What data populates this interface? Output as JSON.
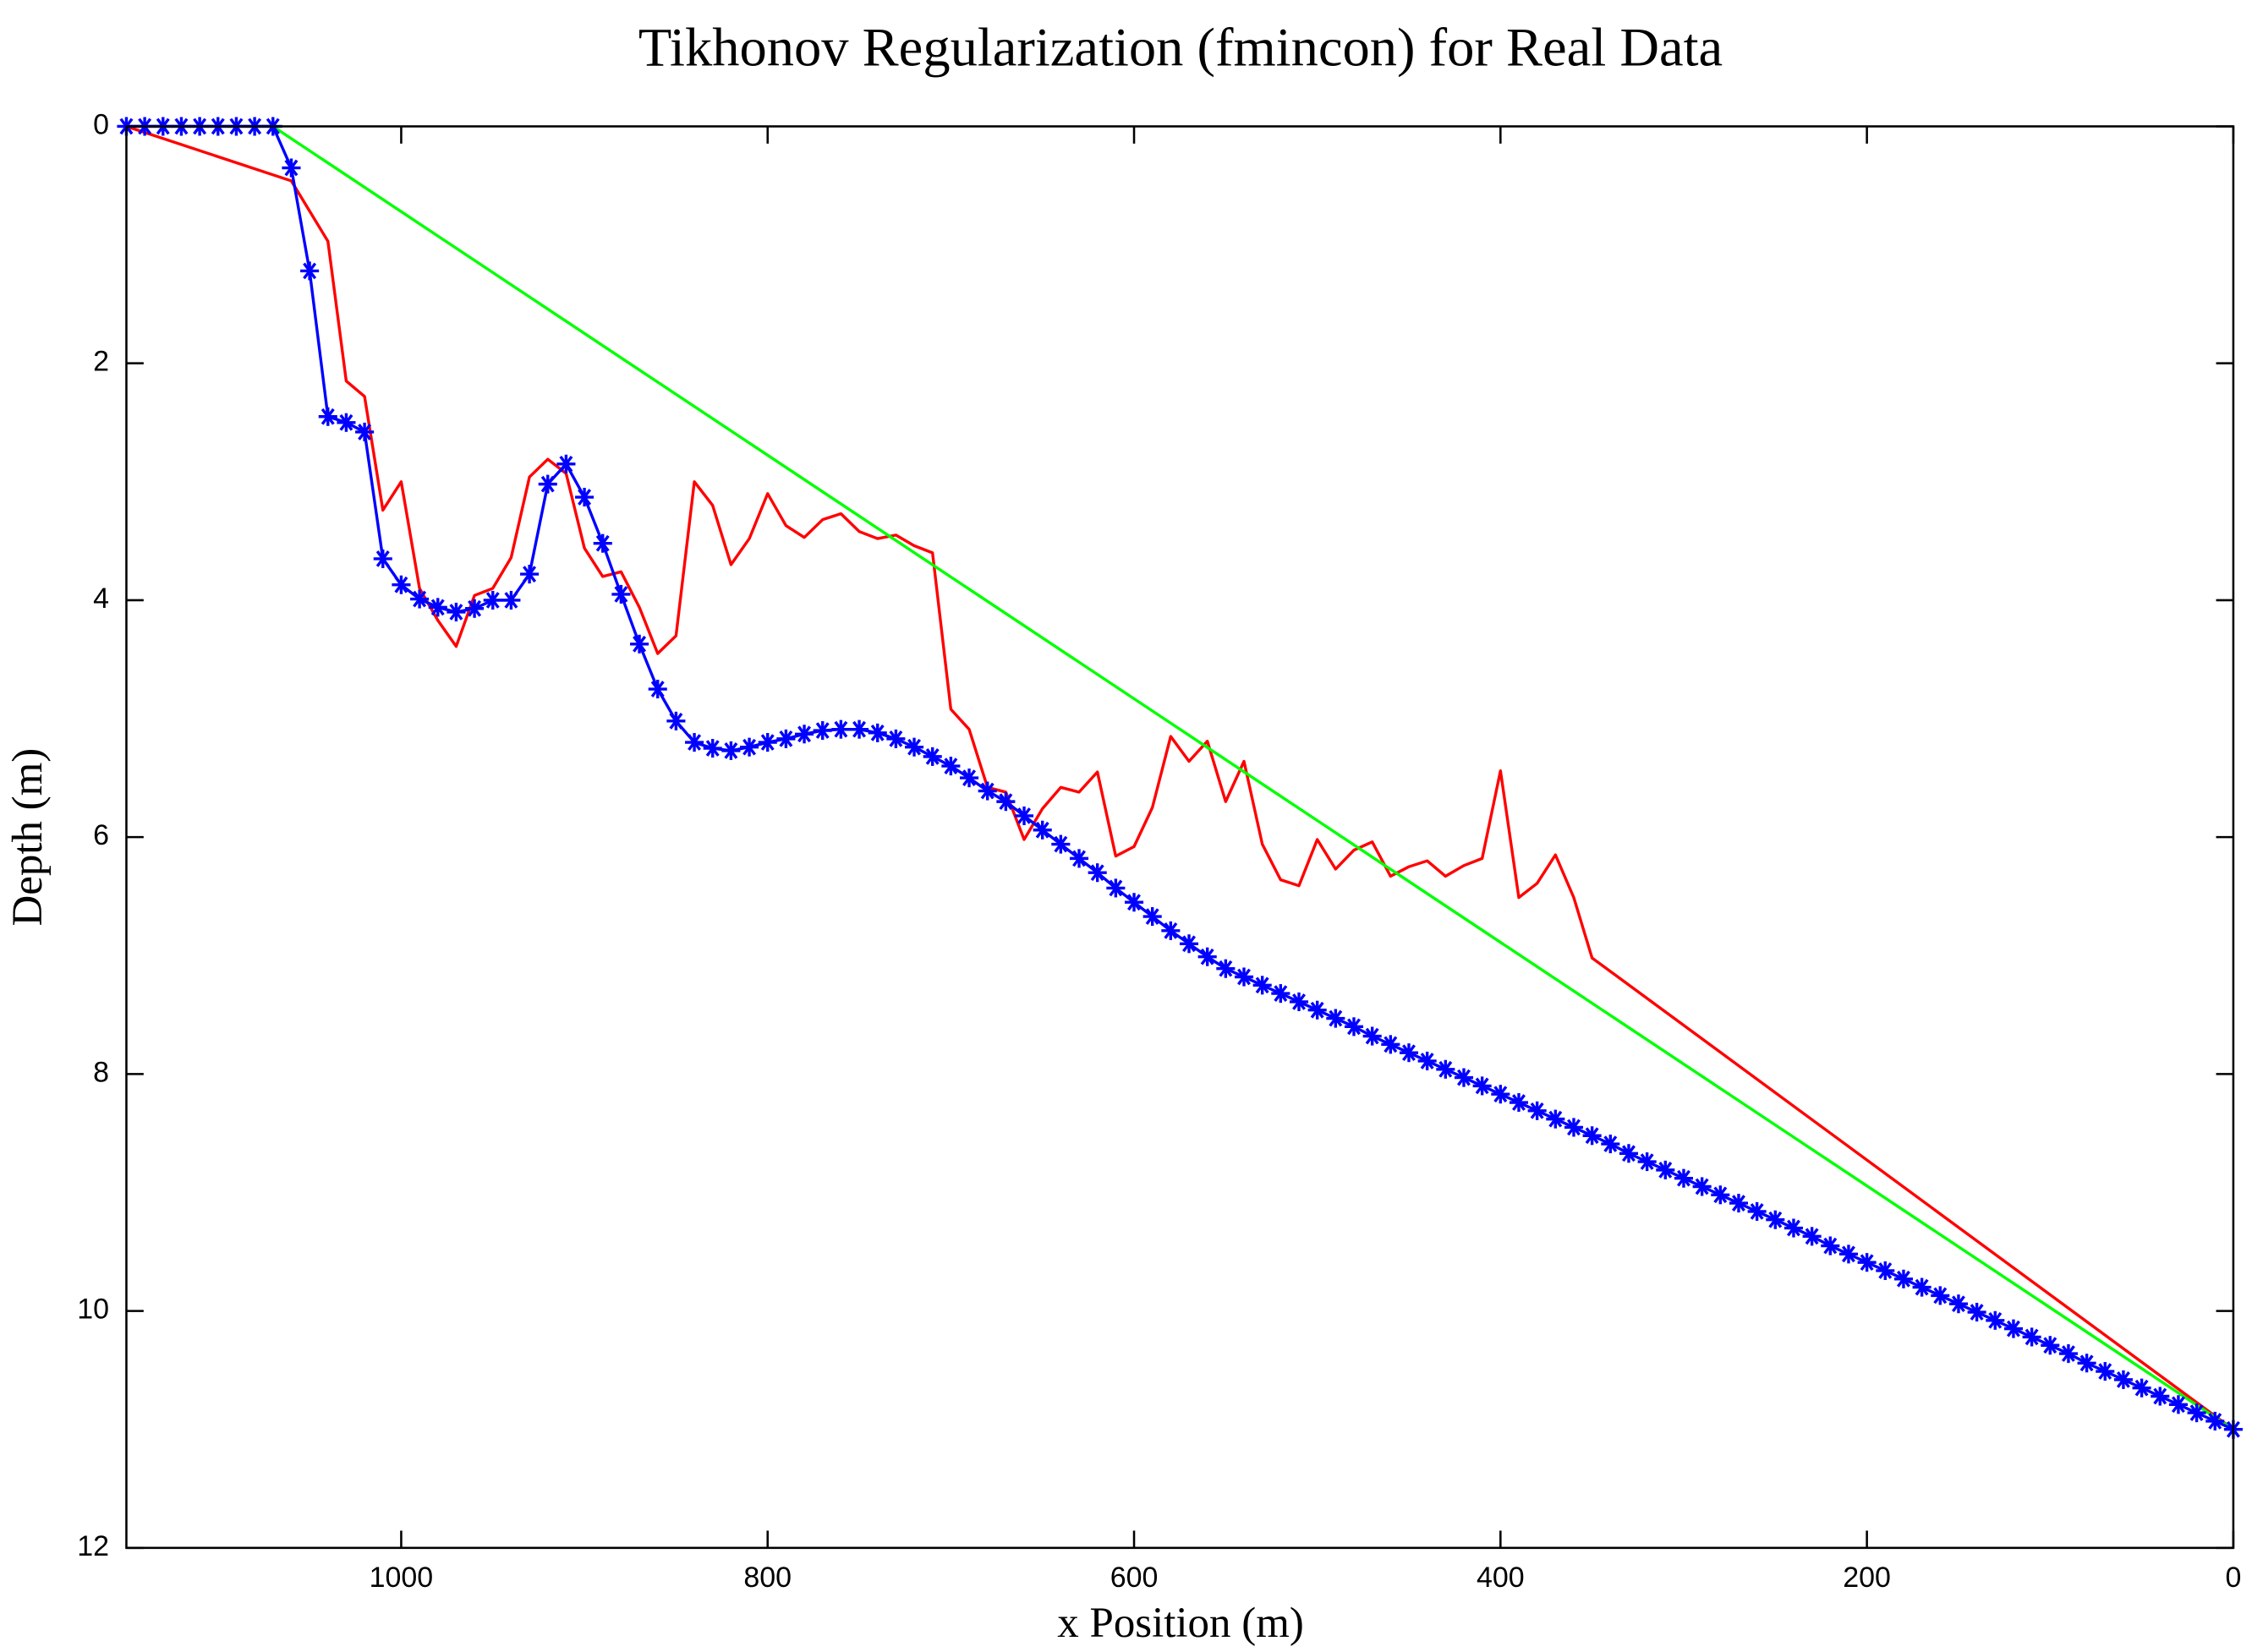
{
  "chart_data": {
    "type": "line",
    "title": "Tikhonov Regularization (fmincon) for Real Data",
    "x_label": "x Position (m)",
    "y_label": "Depth (m)",
    "xlim": [
      1150,
      0
    ],
    "xticks": [
      1000,
      800,
      600,
      400,
      200,
      0
    ],
    "ylim": [
      0,
      12
    ],
    "yticks": [
      0,
      2,
      4,
      6,
      8,
      10,
      12
    ],
    "y_reversed": true,
    "series": [
      {
        "color": "#ff0000",
        "marker": "none",
        "x": [
          1150,
          1060,
          1040,
          1030,
          1020,
          1010,
          1000,
          990,
          980,
          970,
          960,
          950,
          940,
          930,
          920,
          910,
          900,
          890,
          880,
          870,
          860,
          850,
          840,
          830,
          820,
          810,
          800,
          790,
          780,
          770,
          760,
          750,
          740,
          730,
          720,
          710,
          700,
          690,
          680,
          670,
          660,
          650,
          640,
          630,
          620,
          610,
          600,
          590,
          580,
          570,
          560,
          550,
          540,
          530,
          520,
          510,
          500,
          490,
          480,
          470,
          460,
          450,
          440,
          430,
          420,
          410,
          400,
          390,
          380,
          370,
          360,
          350,
          0
        ],
        "values": [
          0,
          0.46,
          0.97,
          2.15,
          2.28,
          3.24,
          3.0,
          3.9,
          4.17,
          4.39,
          3.96,
          3.9,
          3.64,
          2.96,
          2.81,
          2.93,
          3.56,
          3.8,
          3.76,
          4.06,
          4.45,
          4.3,
          3.0,
          3.2,
          3.7,
          3.48,
          3.1,
          3.37,
          3.47,
          3.32,
          3.27,
          3.42,
          3.48,
          3.45,
          3.54,
          3.6,
          4.92,
          5.09,
          5.58,
          5.62,
          6.02,
          5.76,
          5.58,
          5.62,
          5.45,
          6.16,
          6.08,
          5.75,
          5.15,
          5.36,
          5.19,
          5.7,
          5.36,
          6.06,
          6.36,
          6.41,
          6.02,
          6.27,
          6.11,
          6.04,
          6.33,
          6.25,
          6.2,
          6.33,
          6.24,
          6.18,
          5.44,
          6.51,
          6.39,
          6.15,
          6.51,
          7.02,
          11.0
        ]
      },
      {
        "color": "#00ff00",
        "marker": "none",
        "x": [
          1070,
          0
        ],
        "values": [
          0,
          11.0
        ]
      },
      {
        "color": "#0000ff",
        "marker": "star",
        "x": [
          1150,
          1140,
          1130,
          1120,
          1110,
          1100,
          1090,
          1080,
          1070,
          1060,
          1050,
          1040,
          1030,
          1020,
          1010,
          1000,
          990,
          980,
          970,
          960,
          950,
          940,
          930,
          920,
          910,
          900,
          890,
          880,
          870,
          860,
          850,
          840,
          830,
          820,
          810,
          800,
          790,
          780,
          770,
          760,
          750,
          740,
          730,
          720,
          710,
          700,
          690,
          680,
          670,
          660,
          650,
          640,
          630,
          620,
          610,
          600,
          590,
          580,
          570,
          560,
          550,
          540,
          530,
          520,
          510,
          500,
          490,
          480,
          470,
          460,
          450,
          440,
          430,
          420,
          410,
          400,
          390,
          380,
          370,
          360,
          350,
          340,
          330,
          320,
          310,
          300,
          290,
          280,
          270,
          260,
          250,
          240,
          230,
          220,
          210,
          200,
          190,
          180,
          170,
          160,
          150,
          140,
          130,
          120,
          110,
          100,
          90,
          80,
          70,
          60,
          50,
          40,
          30,
          20,
          10,
          0
        ],
        "values": [
          0,
          0,
          0,
          0,
          0,
          0,
          0,
          0,
          0,
          0.35,
          1.22,
          2.45,
          2.5,
          2.58,
          3.65,
          3.87,
          3.99,
          4.06,
          4.1,
          4.07,
          4.0,
          4.0,
          3.78,
          3.02,
          2.85,
          3.13,
          3.52,
          3.95,
          4.37,
          4.75,
          5.02,
          5.2,
          5.25,
          5.27,
          5.24,
          5.2,
          5.17,
          5.13,
          5.1,
          5.09,
          5.09,
          5.12,
          5.17,
          5.24,
          5.32,
          5.4,
          5.5,
          5.61,
          5.7,
          5.82,
          5.94,
          6.06,
          6.18,
          6.3,
          6.43,
          6.55,
          6.67,
          6.79,
          6.9,
          7.01,
          7.11,
          7.18,
          7.25,
          7.32,
          7.39,
          7.46,
          7.53,
          7.6,
          7.68,
          7.75,
          7.82,
          7.89,
          7.96,
          8.03,
          8.1,
          8.17,
          8.24,
          8.31,
          8.38,
          8.45,
          8.52,
          8.59,
          8.67,
          8.74,
          8.81,
          8.88,
          8.95,
          9.02,
          9.09,
          9.16,
          9.23,
          9.3,
          9.37,
          9.45,
          9.52,
          9.59,
          9.66,
          9.73,
          9.8,
          9.87,
          9.94,
          10.01,
          10.08,
          10.15,
          10.22,
          10.29,
          10.36,
          10.44,
          10.51,
          10.58,
          10.65,
          10.72,
          10.79,
          10.86,
          10.93,
          11.0
        ]
      }
    ]
  }
}
